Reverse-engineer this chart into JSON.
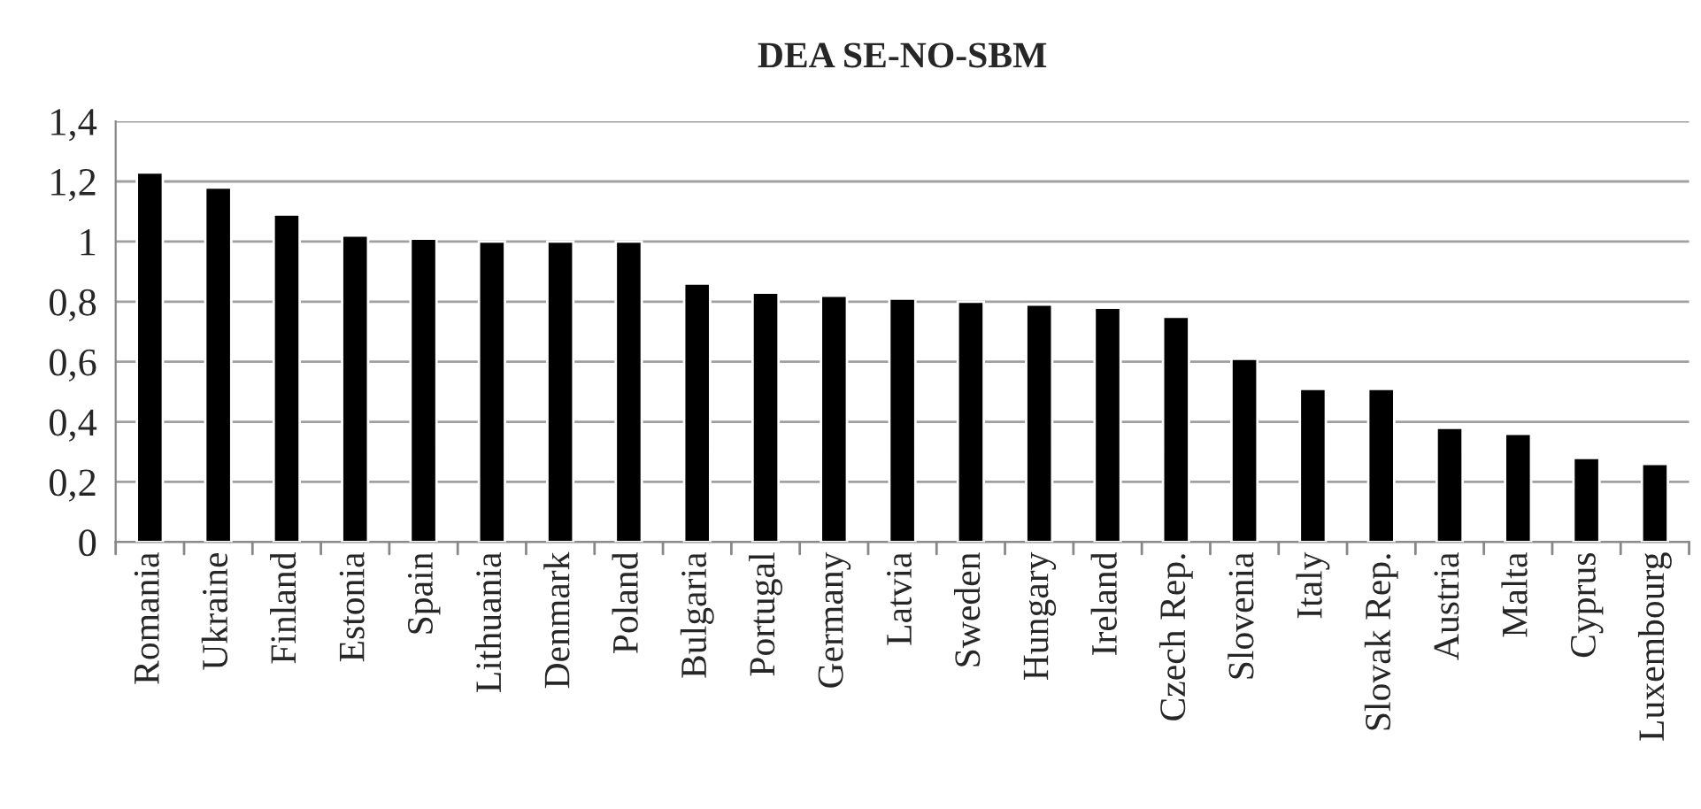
{
  "chart_data": {
    "type": "bar",
    "title": "DEA SE-NO-SBM",
    "categories": [
      "Romania",
      "Ukraine",
      "Finland",
      "Estonia",
      "Spain",
      "Lithuania",
      "Denmark",
      "Poland",
      "Bulgaria",
      "Portugal",
      "Germany",
      "Latvia",
      "Sweden",
      "Hungary",
      "Ireland",
      "Czech Rep.",
      "Slovenia",
      "Italy",
      "Slovak Rep.",
      "Austria",
      "Malta",
      "Cyprus",
      "Luxembourg"
    ],
    "values": [
      1.23,
      1.18,
      1.09,
      1.02,
      1.01,
      1.0,
      1.0,
      1.0,
      0.86,
      0.83,
      0.82,
      0.81,
      0.8,
      0.79,
      0.78,
      0.75,
      0.61,
      0.51,
      0.51,
      0.38,
      0.36,
      0.28,
      0.26
    ],
    "color": "#000000",
    "ylim": [
      0,
      1.4
    ],
    "yticks": [
      0,
      {
        "value": 0.2,
        "label": "0,2"
      },
      {
        "value": 0.4,
        "label": "0,4"
      },
      {
        "value": 0.6,
        "label": "0,6"
      },
      {
        "value": 0.8,
        "label": "0,8"
      },
      1,
      {
        "value": 1.2,
        "label": "1,2"
      },
      {
        "value": 1.4,
        "label": "1,4"
      }
    ],
    "grid": "y"
  }
}
